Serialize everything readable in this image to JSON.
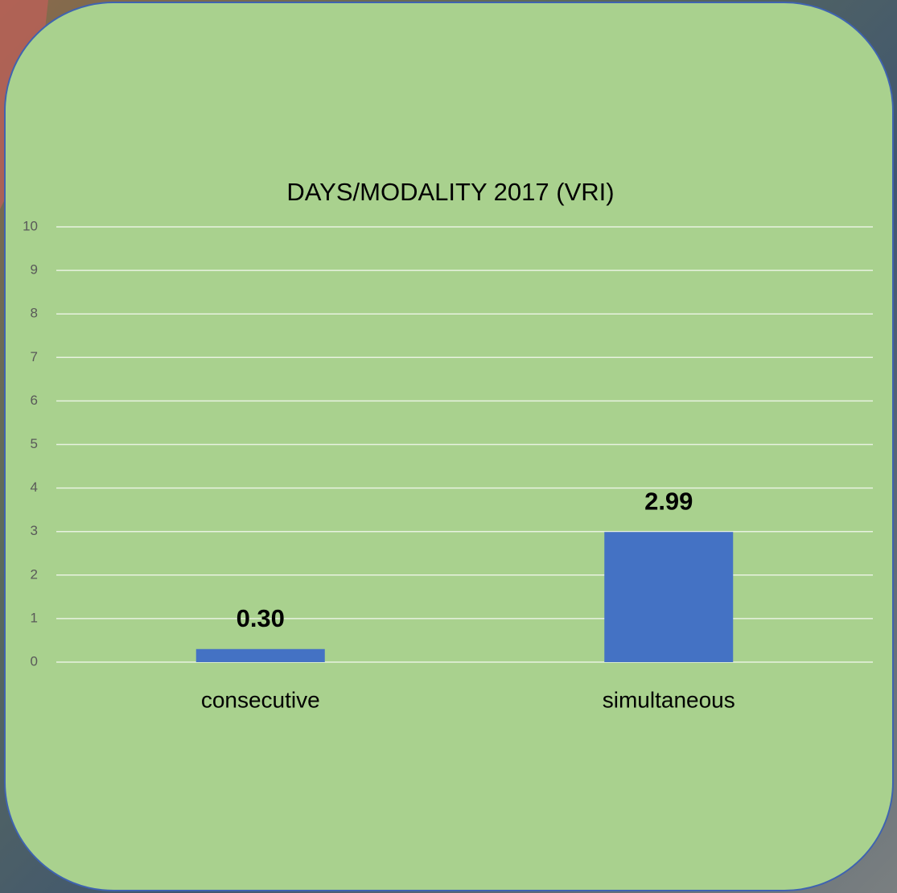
{
  "chart_data": {
    "type": "bar",
    "title": "DAYS/MODALITY 2017 (VRI)",
    "categories": [
      "consecutive",
      "simultaneous"
    ],
    "values": [
      0.3,
      2.99
    ],
    "value_labels": [
      "0.30",
      "2.99"
    ],
    "color": "#4472c4",
    "ylim": [
      0,
      10
    ],
    "yticks": [
      0,
      1,
      2,
      3,
      4,
      5,
      6,
      7,
      8,
      9,
      10
    ],
    "grid": true
  }
}
